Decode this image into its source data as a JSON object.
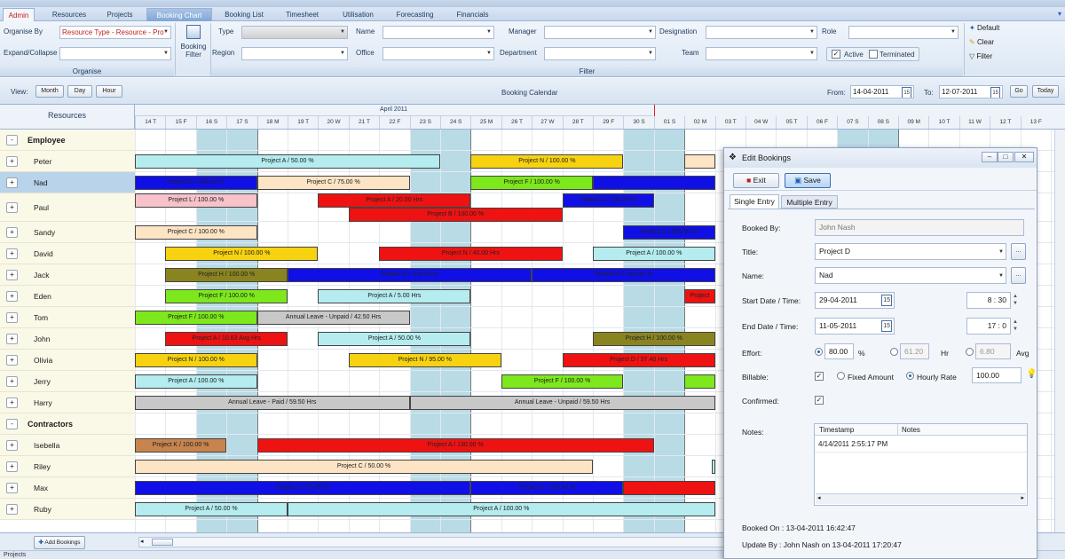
{
  "tabs": [
    "Admin",
    "Resources",
    "Projects",
    "Booking Chart",
    "Booking List",
    "Timesheet",
    "Utilisation",
    "Forecasting",
    "Financials"
  ],
  "ribbon": {
    "organise_by_label": "Organise By",
    "organise_by_value": "Resource Type - Resource - Pro",
    "expand_collapse_label": "Expand/Collapse",
    "organise_group": "Organise",
    "booking_filter_label": "Booking Filter",
    "type_label": "Type",
    "region_label": "Region",
    "name_label": "Name",
    "office_label": "Office",
    "manager_label": "Manager",
    "department_label": "Department",
    "designation_label": "Designation",
    "team_label": "Team",
    "role_label": "Role",
    "active_label": "Active",
    "terminated_label": "Terminated",
    "filter_group": "Filter",
    "default_label": "Default",
    "clear_label": "Clear",
    "filter_label": "Filter"
  },
  "viewbar": {
    "view_label": "View:",
    "month": "Month",
    "day": "Day",
    "hour": "Hour",
    "title": "Booking Calendar",
    "from_label": "From:",
    "from_value": "14-04-2011",
    "to_label": "To:",
    "to_value": "12-07-2011",
    "go": "Go",
    "today": "Today",
    "cal_icon_text": "15"
  },
  "calendar": {
    "resources_header": "Resources",
    "month_label": "April 2011",
    "days": [
      "14 T",
      "15 F",
      "16 S",
      "17 S",
      "18 M",
      "19 T",
      "20 W",
      "21 T",
      "22 F",
      "23 S",
      "24 S",
      "25 M",
      "26 T",
      "27 W",
      "28 T",
      "29 F",
      "30 S",
      "01 S",
      "02 M",
      "03 T",
      "04 W",
      "05 T",
      "06 F",
      "07 S",
      "08 S",
      "09 M",
      "10 T",
      "11 W",
      "12 T",
      "13 F"
    ]
  },
  "rows": [
    {
      "type": "group",
      "label": "Employee",
      "exp": "-"
    },
    {
      "type": "res",
      "label": "Peter",
      "exp": "+"
    },
    {
      "type": "res",
      "label": "Nad",
      "exp": "+",
      "selected": true
    },
    {
      "type": "res",
      "label": "Paul",
      "exp": "+"
    },
    {
      "type": "res",
      "label": "Sandy",
      "exp": "+"
    },
    {
      "type": "res",
      "label": "David",
      "exp": "+"
    },
    {
      "type": "res",
      "label": "Jack",
      "exp": "+"
    },
    {
      "type": "res",
      "label": "Eden",
      "exp": "+"
    },
    {
      "type": "res",
      "label": "Tom",
      "exp": "+"
    },
    {
      "type": "res",
      "label": "John",
      "exp": "+"
    },
    {
      "type": "res",
      "label": "Olivia",
      "exp": "+"
    },
    {
      "type": "res",
      "label": "Jerry",
      "exp": "+"
    },
    {
      "type": "res",
      "label": "Harry",
      "exp": "+"
    },
    {
      "type": "group",
      "label": "Contractors",
      "exp": "-"
    },
    {
      "type": "res",
      "label": "Isebella",
      "exp": "+"
    },
    {
      "type": "res",
      "label": "Riley",
      "exp": "+"
    },
    {
      "type": "res",
      "label": "Max",
      "exp": "+"
    },
    {
      "type": "res",
      "label": "Ruby",
      "exp": "+"
    }
  ],
  "bookings": [
    {
      "row": 1,
      "start": 0,
      "end": 10,
      "label": "Project A / 50.00 %",
      "color": "#b4ecef"
    },
    {
      "row": 1,
      "start": 11,
      "end": 16,
      "label": "Project N / 100.00 %",
      "color": "#f6d210"
    },
    {
      "row": 1,
      "start": 18,
      "end": 19,
      "label": "",
      "color": "#fde4c4"
    },
    {
      "row": 2,
      "start": 0,
      "end": 4,
      "label": "Project D / 100.00 %",
      "color": "#1010e6"
    },
    {
      "row": 2,
      "start": 4,
      "end": 9,
      "label": "Project C / 75.00 %",
      "color": "#fde4c4"
    },
    {
      "row": 2,
      "start": 11,
      "end": 15,
      "label": "Project F / 100.00 %",
      "color": "#7de81c"
    },
    {
      "row": 2,
      "start": 15,
      "end": 19,
      "label": "",
      "color": "#1010e6"
    },
    {
      "row": 3,
      "start": 0,
      "end": 4,
      "label": "Project L / 100.00 %",
      "color": "#f7c2c9",
      "sub": 0
    },
    {
      "row": 3,
      "start": 6,
      "end": 11,
      "label": "Project A / 20.00 Hrs",
      "color": "#ee1212",
      "sub": 0
    },
    {
      "row": 3,
      "start": 14,
      "end": 17,
      "label": "Project D / 100.00 %",
      "color": "#1010e6",
      "sub": 0
    },
    {
      "row": 3,
      "start": 7,
      "end": 14,
      "label": "Project B / 100.00 %",
      "color": "#ee1212",
      "sub": 1
    },
    {
      "row": 4,
      "start": 0,
      "end": 4,
      "label": "Project C / 100.00 %",
      "color": "#fde4c4"
    },
    {
      "row": 4,
      "start": 16,
      "end": 19,
      "label": "Project D / 100.00 %",
      "color": "#1010e6"
    },
    {
      "row": 5,
      "start": 1,
      "end": 6,
      "label": "Project N / 100.00 %",
      "color": "#f6d210"
    },
    {
      "row": 5,
      "start": 8,
      "end": 14,
      "label": "Project N / 40.00 Hrs",
      "color": "#ee1212"
    },
    {
      "row": 5,
      "start": 15,
      "end": 19,
      "label": "Project A / 100.00 %",
      "color": "#b4ecef"
    },
    {
      "row": 6,
      "start": 1,
      "end": 5,
      "label": "Project H / 100.00 %",
      "color": "#8a8420"
    },
    {
      "row": 6,
      "start": 5,
      "end": 13,
      "label": "Project D / 100.00 %",
      "color": "#1010e6"
    },
    {
      "row": 6,
      "start": 13,
      "end": 19,
      "label": "Project D / 100.00 %",
      "color": "#1010e6"
    },
    {
      "row": 7,
      "start": 1,
      "end": 5,
      "label": "Project F / 100.00 %",
      "color": "#7de81c"
    },
    {
      "row": 7,
      "start": 6,
      "end": 11,
      "label": "Project A / 5.00 Hrs",
      "color": "#b4ecef"
    },
    {
      "row": 7,
      "start": 18,
      "end": 19,
      "label": "Project",
      "color": "#ee1212"
    },
    {
      "row": 8,
      "start": 0,
      "end": 4,
      "label": "Project F / 100.00 %",
      "color": "#7de81c"
    },
    {
      "row": 8,
      "start": 4,
      "end": 9,
      "label": "Annual Leave - Unpaid / 42.50 Hrs",
      "color": "#c8c8c8"
    },
    {
      "row": 9,
      "start": 1,
      "end": 5,
      "label": "Project A / 10.63 Avg Hrs",
      "color": "#ee1212"
    },
    {
      "row": 9,
      "start": 6,
      "end": 11,
      "label": "Project A / 50.00 %",
      "color": "#b4ecef"
    },
    {
      "row": 9,
      "start": 15,
      "end": 19,
      "label": "Project H / 100.00 %",
      "color": "#8a8420"
    },
    {
      "row": 10,
      "start": 0,
      "end": 4,
      "label": "Project N / 100.00 %",
      "color": "#f6d210"
    },
    {
      "row": 10,
      "start": 7,
      "end": 12,
      "label": "Project N / 95.00 %",
      "color": "#f6d210"
    },
    {
      "row": 10,
      "start": 14,
      "end": 19,
      "label": "Project D / 37.40 Hrs",
      "color": "#ee1212"
    },
    {
      "row": 11,
      "start": 0,
      "end": 4,
      "label": "Project A / 100.00 %",
      "color": "#b4ecef"
    },
    {
      "row": 11,
      "start": 12,
      "end": 16,
      "label": "Project F / 100.00 %",
      "color": "#7de81c"
    },
    {
      "row": 11,
      "start": 18,
      "end": 19,
      "label": "",
      "color": "#7de81c"
    },
    {
      "row": 12,
      "start": 0,
      "end": 9,
      "label": "Annual Leave - Paid / 59.50 Hrs",
      "color": "#c8c8c8"
    },
    {
      "row": 12,
      "start": 9,
      "end": 19,
      "label": "Annual Leave - Unpaid / 59.50 Hrs",
      "color": "#c8c8c8"
    },
    {
      "row": 14,
      "start": 0,
      "end": 3,
      "label": "Project K / 100.00 %",
      "color": "#c8844e"
    },
    {
      "row": 14,
      "start": 4,
      "end": 17,
      "label": "Project A / 130.00 %",
      "color": "#ee1212"
    },
    {
      "row": 15,
      "start": 0,
      "end": 15,
      "label": "Project C / 50.00 %",
      "color": "#fde4c4"
    },
    {
      "row": 15,
      "start": 18.9,
      "end": 19,
      "label": "",
      "color": "#b4ecef"
    },
    {
      "row": 16,
      "start": 0,
      "end": 11,
      "label": "Project D / 25.00 %",
      "color": "#1010e6"
    },
    {
      "row": 16,
      "start": 11,
      "end": 16,
      "label": "Project D / 100.00 %",
      "color": "#1010e6"
    },
    {
      "row": 16,
      "start": 16,
      "end": 19,
      "label": "",
      "color": "#ee1212"
    },
    {
      "row": 17,
      "start": 0,
      "end": 5,
      "label": "Project A / 50.00 %",
      "color": "#b4ecef"
    },
    {
      "row": 17,
      "start": 5,
      "end": 19,
      "label": "Project A / 100.00 %",
      "color": "#b4ecef"
    }
  ],
  "bottom": {
    "add_bookings": "Add Bookings",
    "status": "Projects"
  },
  "dialog": {
    "title": "Edit Bookings",
    "exit": "Exit",
    "save": "Save",
    "tab_single": "Single Entry",
    "tab_multiple": "Multiple Entry",
    "booked_by_label": "Booked By:",
    "booked_by": "John Nash",
    "title_label": "Title:",
    "title_value": "Project D",
    "name_label": "Name:",
    "name_value": "Nad",
    "start_label": "Start Date / Time:",
    "start_date": "29-04-2011",
    "start_hour": "8",
    "start_min": "30",
    "end_label": "End Date / Time:",
    "end_date": "11-05-2011",
    "end_hour": "17",
    "end_min": "0",
    "effort_label": "Effort:",
    "effort_pct": "80.00",
    "pct_sign": "%",
    "effort_hr": "61.20",
    "hr_label": "Hr",
    "effort_avg": "6.80",
    "avg_label": "Avg",
    "billable_label": "Billable:",
    "fixed_amount": "Fixed Amount",
    "hourly_rate": "Hourly Rate",
    "rate_value": "100.00",
    "confirmed_label": "Confirmed:",
    "notes_label": "Notes:",
    "col_timestamp": "Timestamp",
    "col_notes": "Notes",
    "note_timestamp": "4/14/2011 2:55:17 PM",
    "booked_on": "Booked On : 13-04-2011 16:42:47",
    "update_by": "Update By : John Nash on 13-04-2011 17:20:47",
    "ellipsis": "...",
    "cal_icon_text": "15"
  }
}
